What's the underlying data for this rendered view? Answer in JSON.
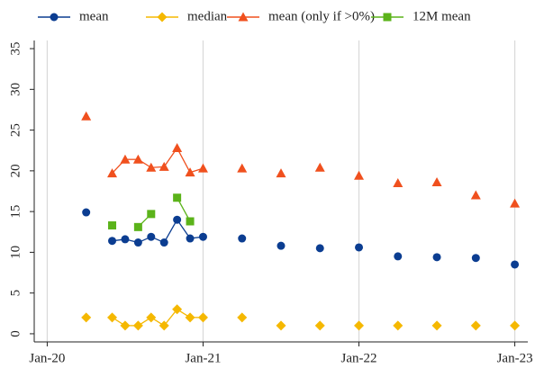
{
  "chart_data": {
    "type": "line",
    "x": [
      "2020-04",
      "2020-06",
      "2020-07",
      "2020-08",
      "2020-09",
      "2020-10",
      "2020-11",
      "2020-12",
      "2021-01",
      "2021-04",
      "2021-07",
      "2021-10",
      "2022-01",
      "2022-04",
      "2022-07",
      "2022-10",
      "2023-01"
    ],
    "series": [
      {
        "name": "mean",
        "color": "#0b3d91",
        "marker": "circle",
        "values": [
          14.9,
          11.4,
          11.6,
          11.2,
          11.9,
          11.2,
          14.0,
          11.7,
          11.9,
          11.7,
          10.8,
          10.5,
          10.6,
          9.5,
          9.4,
          9.3,
          8.5
        ]
      },
      {
        "name": "median",
        "color": "#f5b800",
        "marker": "diamond",
        "values": [
          2,
          2,
          1,
          1,
          2,
          1,
          3,
          2,
          2,
          2,
          1,
          1,
          1,
          1,
          1,
          1,
          1
        ]
      },
      {
        "name": "mean (only if >0%)",
        "color": "#f0501e",
        "marker": "triangle",
        "values": [
          26.7,
          19.7,
          21.4,
          21.4,
          20.4,
          20.5,
          22.8,
          19.8,
          20.3,
          20.3,
          19.7,
          20.4,
          19.4,
          18.5,
          18.6,
          17.0,
          16.0
        ]
      },
      {
        "name": "12M mean",
        "color": "#5bb31a",
        "marker": "square",
        "values": [
          null,
          13.3,
          null,
          13.1,
          14.7,
          null,
          16.7,
          13.8,
          null,
          null,
          null,
          null,
          null,
          null,
          null,
          null,
          null
        ]
      }
    ],
    "xlim": [
      "2019-12",
      "2023-02"
    ],
    "xticks": [
      {
        "value": "2020-01",
        "label": "Jan-20"
      },
      {
        "value": "2021-01",
        "label": "Jan-21"
      },
      {
        "value": "2022-01",
        "label": "Jan-22"
      },
      {
        "value": "2023-01",
        "label": "Jan-23"
      }
    ],
    "ylim": [
      -1,
      36
    ],
    "yticks": [
      0,
      5,
      10,
      15,
      20,
      25,
      30,
      35
    ],
    "grid": "x",
    "legend": "top"
  }
}
